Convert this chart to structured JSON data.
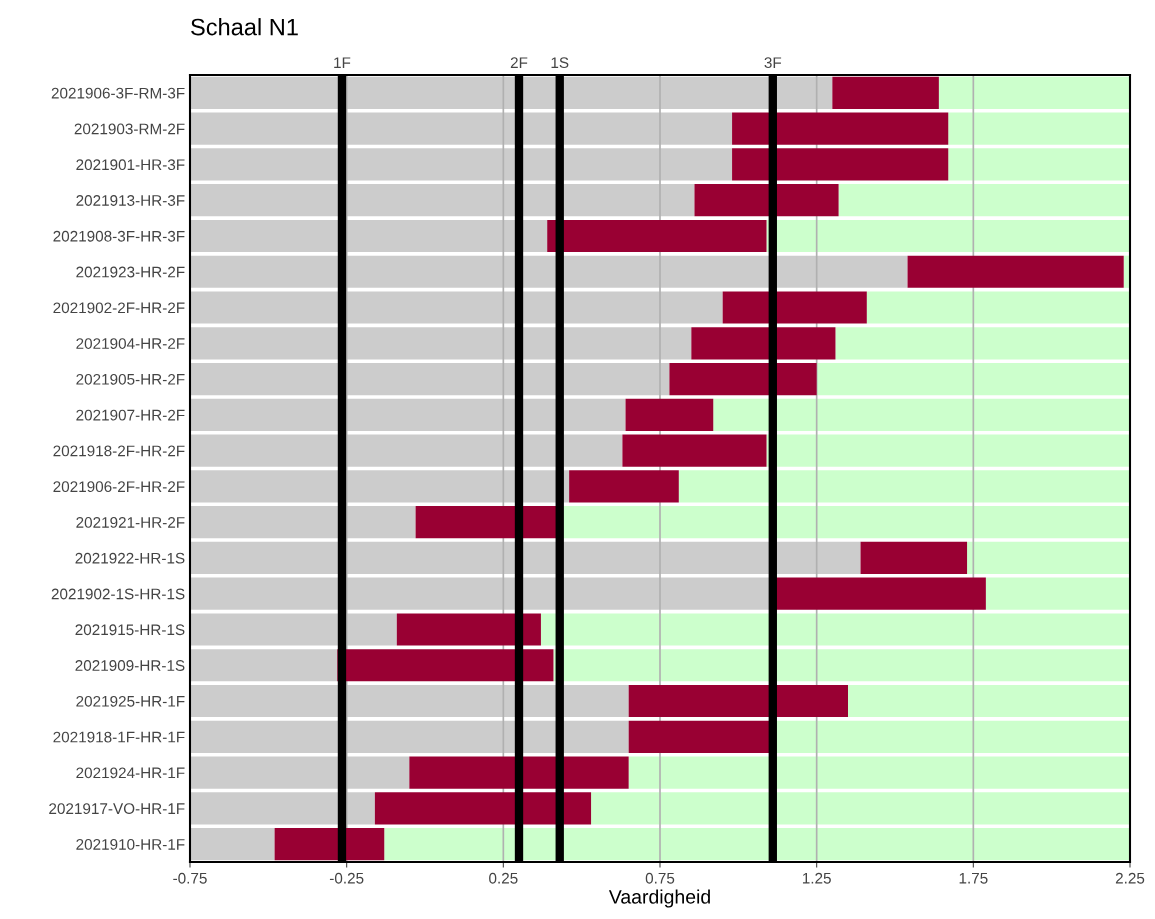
{
  "chart_data": {
    "type": "bar",
    "orientation": "horizontal",
    "title": "Schaal N1",
    "xlabel": "Vaardigheid",
    "categories": [
      "2021906-3F-RM-3F",
      "2021903-RM-2F",
      "2021901-HR-3F",
      "2021913-HR-3F",
      "2021908-3F-HR-3F",
      "2021923-HR-2F",
      "2021902-2F-HR-2F",
      "2021904-HR-2F",
      "2021905-HR-2F",
      "2021907-HR-2F",
      "2021918-2F-HR-2F",
      "2021906-2F-HR-2F",
      "2021921-HR-2F",
      "2021922-HR-1S",
      "2021902-1S-HR-1S",
      "2021915-HR-1S",
      "2021909-HR-1S",
      "2021925-HR-1F",
      "2021918-1F-HR-1F",
      "2021924-HR-1F",
      "2021917-VO-HR-1F",
      "2021910-HR-1F"
    ],
    "series": [
      {
        "color": "#cccccc",
        "base": [
          -0.75,
          -0.75,
          -0.75,
          -0.75,
          -0.75,
          -0.75,
          -0.75,
          -0.75,
          -0.75,
          -0.75,
          -0.75,
          -0.75,
          -0.75,
          -0.75,
          -0.75,
          -0.75,
          -0.75,
          -0.75,
          -0.75,
          -0.75,
          -0.75,
          -0.75
        ],
        "values": [
          2.05,
          1.73,
          1.73,
          1.61,
          1.14,
          2.29,
          1.7,
          1.6,
          1.53,
          1.39,
          1.38,
          1.21,
          0.72,
          2.14,
          1.86,
          0.66,
          0.47,
          1.4,
          1.4,
          0.7,
          0.59,
          0.27
        ]
      },
      {
        "color": "#990033",
        "base": [
          1.3,
          0.98,
          0.98,
          0.86,
          0.39,
          1.54,
          0.95,
          0.85,
          0.78,
          0.64,
          0.63,
          0.46,
          -0.03,
          1.39,
          1.11,
          -0.09,
          -0.28,
          0.65,
          0.65,
          -0.05,
          -0.16,
          -0.48
        ],
        "values": [
          0.34,
          0.69,
          0.69,
          0.46,
          0.7,
          0.69,
          0.46,
          0.46,
          0.47,
          0.28,
          0.46,
          0.35,
          0.45,
          0.34,
          0.68,
          0.46,
          0.69,
          0.7,
          0.45,
          0.7,
          0.69,
          0.35
        ]
      },
      {
        "color": "#ccffcc",
        "base": [
          1.64,
          1.67,
          1.67,
          1.32,
          1.09,
          2.23,
          1.41,
          1.31,
          1.25,
          0.92,
          1.09,
          0.81,
          0.42,
          1.73,
          1.79,
          0.37,
          0.41,
          1.35,
          1.1,
          0.65,
          0.53,
          -0.13
        ],
        "values": [
          0.61,
          0.58,
          0.58,
          0.93,
          1.16,
          0.02,
          0.84,
          0.94,
          1.0,
          1.33,
          1.16,
          1.44,
          1.83,
          0.52,
          0.46,
          1.88,
          1.84,
          0.9,
          1.15,
          1.6,
          1.72,
          2.38
        ]
      }
    ],
    "xlim": [
      -0.75,
      2.25
    ],
    "xticks": [
      -0.75,
      -0.25,
      0.25,
      0.75,
      1.25,
      1.75,
      2.25
    ],
    "grid": "x",
    "ref_lines": [
      {
        "axis": "x",
        "value": -0.265,
        "label": "1F",
        "color": "#000000"
      },
      {
        "axis": "x",
        "value": 0.3,
        "label": "2F",
        "color": "#000000"
      },
      {
        "axis": "x",
        "value": 0.43,
        "label": "1S",
        "color": "#000000"
      },
      {
        "axis": "x",
        "value": 1.11,
        "label": "3F",
        "color": "#000000"
      }
    ]
  }
}
